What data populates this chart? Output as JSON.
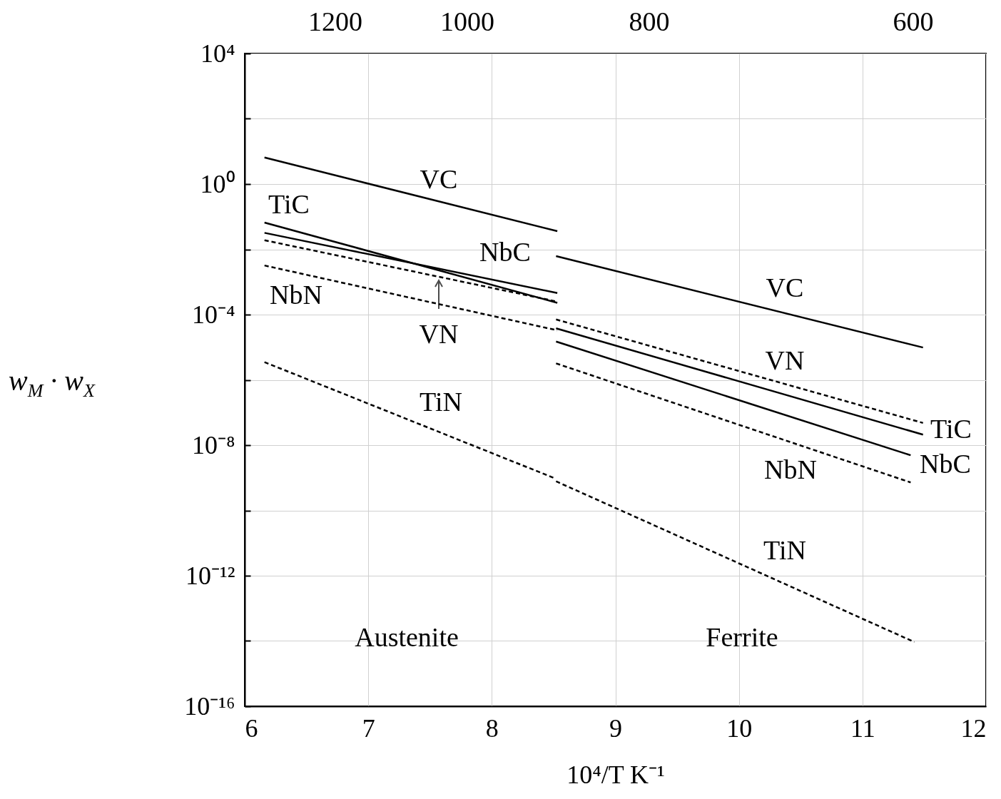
{
  "chart_data": {
    "type": "line",
    "xlabel": "10⁴/T    K⁻¹",
    "ylabel": "w$_{M}$ · w$_{X}$",
    "log": "y",
    "grid": true,
    "xlim": [
      6,
      12
    ],
    "xticks": [
      6,
      7,
      8,
      9,
      10,
      11,
      12
    ],
    "ylim": [
      1e-16,
      10000
    ],
    "yticks": [
      {
        "value": 10000,
        "label": "10⁴"
      },
      {
        "value": 100,
        "label": null
      },
      {
        "value": 1,
        "label": "10⁰"
      },
      {
        "value": 0.01,
        "label": null
      },
      {
        "value": 0.0001,
        "label": "10⁻⁴"
      },
      {
        "value": 1e-06,
        "label": null
      },
      {
        "value": 1e-08,
        "label": "10⁻⁸"
      },
      {
        "value": 1e-10,
        "label": null
      },
      {
        "value": 1e-12,
        "label": "10⁻¹²"
      },
      {
        "value": 1e-14,
        "label": null
      },
      {
        "value": 1e-16,
        "label": "10⁻¹⁶"
      }
    ],
    "series": [
      {
        "color": "#000000",
        "line_style": "solid",
        "x": [
          6.16,
          8.53
        ],
        "values": [
          6.5,
          0.036
        ]
      },
      {
        "color": "#000000",
        "line_style": "solid",
        "x": [
          6.16,
          8.53
        ],
        "values": [
          0.066,
          0.00023
        ]
      },
      {
        "color": "#000000",
        "line_style": "solid",
        "x": [
          6.16,
          8.53
        ],
        "values": [
          0.032,
          0.00046
        ]
      },
      {
        "color": "#000000",
        "line_style": "dashed",
        "x": [
          6.16,
          8.53
        ],
        "values": [
          0.019,
          0.00025
        ]
      },
      {
        "color": "#000000",
        "line_style": "dashed",
        "x": [
          6.16,
          8.53
        ],
        "values": [
          0.0032,
          3.3e-05
        ]
      },
      {
        "color": "#000000",
        "line_style": "dashed",
        "x": [
          6.16,
          8.5
        ],
        "values": [
          3.5e-06,
          1e-09
        ]
      },
      {
        "color": "#000000",
        "line_style": "solid",
        "x": [
          8.52,
          11.49
        ],
        "values": [
          0.0062,
          9.8e-06
        ]
      },
      {
        "color": "#000000",
        "line_style": "dashed",
        "x": [
          8.52,
          11.49
        ],
        "values": [
          7.1e-05,
          4.8e-08
        ]
      },
      {
        "color": "#000000",
        "line_style": "solid",
        "x": [
          8.52,
          11.49
        ],
        "values": [
          3.8e-05,
          2.1e-08
        ]
      },
      {
        "color": "#000000",
        "line_style": "solid",
        "x": [
          8.52,
          11.39
        ],
        "values": [
          1.5e-05,
          4.9e-09
        ]
      },
      {
        "color": "#000000",
        "line_style": "dashed",
        "x": [
          8.52,
          11.39
        ],
        "values": [
          3.2e-06,
          7.2e-10
        ]
      },
      {
        "color": "#000000",
        "line_style": "dashed",
        "x": [
          8.52,
          11.42
        ],
        "values": [
          7.8e-10,
          9.3e-15
        ]
      }
    ],
    "annotations": [
      "1200",
      "1000",
      "800",
      "600",
      "VC",
      "TiC",
      "NbC",
      "NbN",
      "VN",
      "TiN",
      "VC",
      "VN",
      "TiC",
      "NbC",
      "NbN",
      "TiN",
      "Austenite",
      "Ferrite"
    ]
  }
}
